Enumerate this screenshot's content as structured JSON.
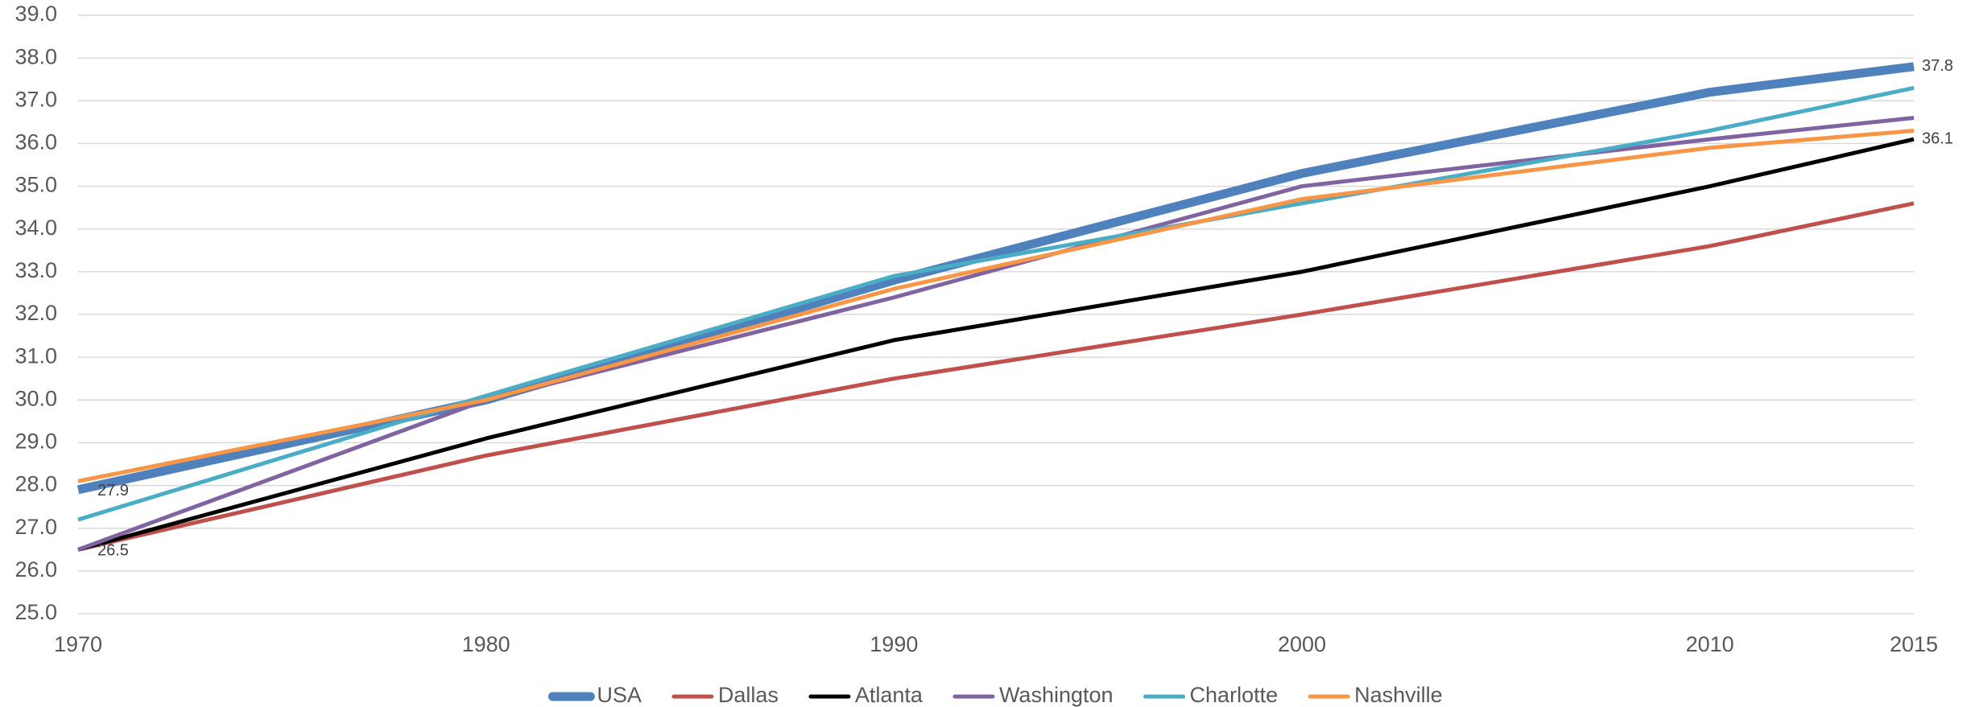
{
  "chart_data": {
    "type": "line",
    "x": [
      1970,
      1980,
      1990,
      2000,
      2010,
      2015
    ],
    "xlim": [
      1970,
      2015
    ],
    "xticks": [
      1970,
      1980,
      1990,
      2000,
      2010,
      2015
    ],
    "ylim": [
      25,
      39
    ],
    "yticks": [
      {
        "value": 25,
        "label": "25.0"
      },
      {
        "value": 26,
        "label": "26.0"
      },
      {
        "value": 27,
        "label": "27.0"
      },
      {
        "value": 28,
        "label": "28.0"
      },
      {
        "value": 29,
        "label": "29.0"
      },
      {
        "value": 30,
        "label": "30.0"
      },
      {
        "value": 31,
        "label": "31.0"
      },
      {
        "value": 32,
        "label": "32.0"
      },
      {
        "value": 33,
        "label": "33.0"
      },
      {
        "value": 34,
        "label": "34.0"
      },
      {
        "value": 35,
        "label": "35.0"
      },
      {
        "value": 36,
        "label": "36.0"
      },
      {
        "value": 37,
        "label": "37.0"
      },
      {
        "value": 38,
        "label": "38.0"
      },
      {
        "value": 39,
        "label": "39.0"
      }
    ],
    "grid": true,
    "legend": "bottom",
    "series": [
      {
        "name": "USA",
        "color": "#4f81bd",
        "line_width": 11,
        "values": [
          27.9,
          30.0,
          32.8,
          35.3,
          37.2,
          37.8
        ],
        "value_labels": [
          "27.9",
          null,
          null,
          null,
          null,
          "37.8"
        ]
      },
      {
        "name": "Dallas",
        "color": "#c0504d",
        "line_width": 5,
        "values": [
          26.5,
          28.7,
          30.5,
          32.0,
          33.6,
          34.6
        ]
      },
      {
        "name": "Atlanta",
        "color": "#000000",
        "line_width": 5,
        "values": [
          26.5,
          29.1,
          31.4,
          33.0,
          35.0,
          36.1
        ],
        "value_labels": [
          "26.5",
          null,
          null,
          null,
          null,
          "36.1"
        ]
      },
      {
        "name": "Washington",
        "color": "#8064a2",
        "line_width": 5,
        "values": [
          26.5,
          30.0,
          32.4,
          35.0,
          36.1,
          36.6
        ]
      },
      {
        "name": "Charlotte",
        "color": "#4bacc6",
        "line_width": 5,
        "values": [
          27.2,
          30.1,
          32.9,
          34.6,
          36.3,
          37.3
        ]
      },
      {
        "name": "Nashville",
        "color": "#f79646",
        "line_width": 5,
        "values": [
          28.1,
          30.0,
          32.6,
          34.7,
          35.9,
          36.3
        ]
      }
    ]
  }
}
